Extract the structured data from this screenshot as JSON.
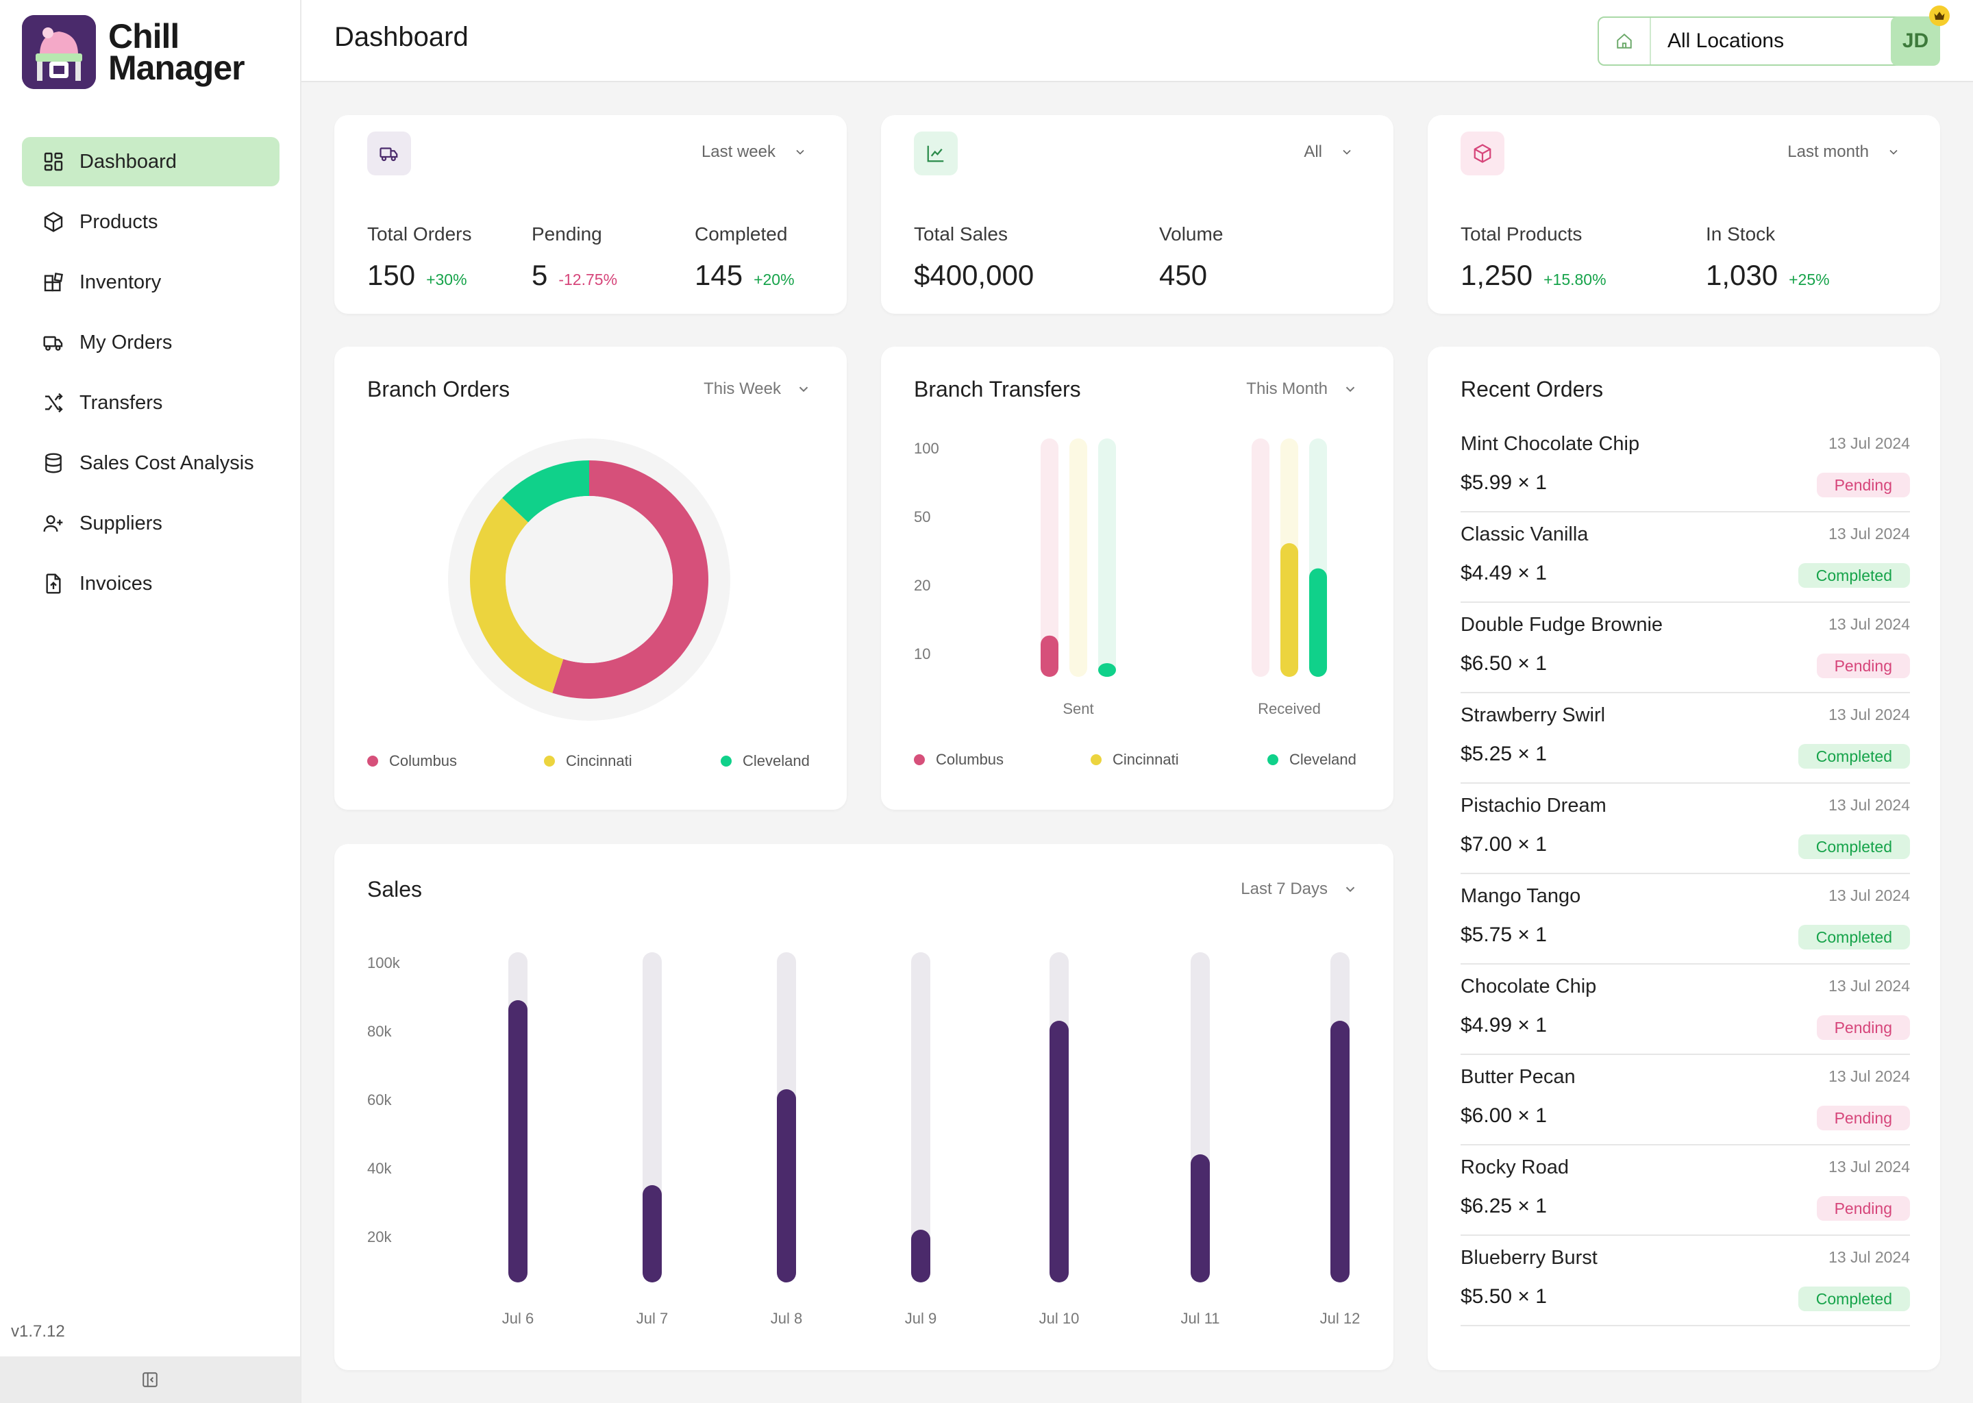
{
  "app": {
    "name_line1": "Chill",
    "name_line2": "Manager",
    "version": "v1.7.12"
  },
  "sidebar": {
    "items": [
      {
        "label": "Dashboard",
        "icon": "dashboard-icon",
        "active": true
      },
      {
        "label": "Products",
        "icon": "box-icon"
      },
      {
        "label": "Inventory",
        "icon": "inventory-icon"
      },
      {
        "label": "My Orders",
        "icon": "truck-icon"
      },
      {
        "label": "Transfers",
        "icon": "shuffle-icon"
      },
      {
        "label": "Sales Cost Analysis",
        "icon": "database-icon"
      },
      {
        "label": "Suppliers",
        "icon": "user-plus-icon"
      },
      {
        "label": "Invoices",
        "icon": "file-upload-icon"
      }
    ]
  },
  "header": {
    "title": "Dashboard",
    "location": "All Locations",
    "avatar": "JD"
  },
  "colors": {
    "accent": "#c9ecc7",
    "purple": "#4a2a6b",
    "columbus": "#d6507a",
    "cincinnati": "#ecd43e",
    "cleveland": "#10d18a"
  },
  "stats": {
    "orders": {
      "period": "Last week",
      "items": [
        {
          "label": "Total Orders",
          "value": "150",
          "delta": "+30%",
          "trend": "pos"
        },
        {
          "label": "Pending",
          "value": "5",
          "delta": "-12.75%",
          "trend": "neg"
        },
        {
          "label": "Completed",
          "value": "145",
          "delta": "+20%",
          "trend": "pos"
        }
      ]
    },
    "sales": {
      "period": "All",
      "items": [
        {
          "label": "Total Sales",
          "value": "$400,000"
        },
        {
          "label": "Volume",
          "value": "450"
        }
      ]
    },
    "products": {
      "period": "Last month",
      "items": [
        {
          "label": "Total Products",
          "value": "1,250",
          "delta": "+15.80%",
          "trend": "pos"
        },
        {
          "label": "In Stock",
          "value": "1,030",
          "delta": "+25%",
          "trend": "pos"
        }
      ]
    }
  },
  "branch_orders": {
    "title": "Branch Orders",
    "period": "This Week",
    "legend": [
      "Columbus",
      "Cincinnati",
      "Cleveland"
    ]
  },
  "branch_transfers": {
    "title": "Branch Transfers",
    "period": "This Month",
    "legend": [
      "Columbus",
      "Cincinnati",
      "Cleveland"
    ]
  },
  "sales_chart": {
    "title": "Sales",
    "period": "Last 7 Days"
  },
  "recent_orders": {
    "title": "Recent Orders",
    "items": [
      {
        "name": "Mint Chocolate Chip",
        "date": "13 Jul 2024",
        "price": "$5.99 × 1",
        "status": "Pending"
      },
      {
        "name": "Classic Vanilla",
        "date": "13 Jul 2024",
        "price": "$4.49 × 1",
        "status": "Completed"
      },
      {
        "name": "Double Fudge Brownie",
        "date": "13 Jul 2024",
        "price": "$6.50 × 1",
        "status": "Pending"
      },
      {
        "name": "Strawberry Swirl",
        "date": "13 Jul 2024",
        "price": "$5.25 × 1",
        "status": "Completed"
      },
      {
        "name": "Pistachio Dream",
        "date": "13 Jul 2024",
        "price": "$7.00 × 1",
        "status": "Completed"
      },
      {
        "name": "Mango Tango",
        "date": "13 Jul 2024",
        "price": "$5.75 × 1",
        "status": "Completed"
      },
      {
        "name": "Chocolate Chip",
        "date": "13 Jul 2024",
        "price": "$4.99 × 1",
        "status": "Pending"
      },
      {
        "name": "Butter Pecan",
        "date": "13 Jul 2024",
        "price": "$6.00 × 1",
        "status": "Pending"
      },
      {
        "name": "Rocky Road",
        "date": "13 Jul 2024",
        "price": "$6.25 × 1",
        "status": "Pending"
      },
      {
        "name": "Blueberry Burst",
        "date": "13 Jul 2024",
        "price": "$5.50 × 1",
        "status": "Completed"
      }
    ]
  },
  "chart_data": [
    {
      "type": "pie",
      "title": "Branch Orders",
      "variant": "donut",
      "categories": [
        "Columbus",
        "Cincinnati",
        "Cleveland"
      ],
      "values": [
        55,
        32,
        13
      ]
    },
    {
      "type": "bar",
      "title": "Branch Transfers",
      "categories": [
        "Sent",
        "Received"
      ],
      "yticks": [
        "100",
        "50",
        "20",
        "10"
      ],
      "series": [
        {
          "name": "Columbus",
          "values": [
            12,
            6
          ]
        },
        {
          "name": "Cincinnati",
          "values": [
            6,
            35
          ]
        },
        {
          "name": "Cleveland",
          "values": [
            9,
            25
          ]
        }
      ],
      "ylim": [
        5,
        100
      ]
    },
    {
      "type": "bar",
      "title": "Sales",
      "categories": [
        "Jul 6",
        "Jul 7",
        "Jul 8",
        "Jul 9",
        "Jul 10",
        "Jul 11",
        "Jul 12"
      ],
      "values": [
        89000,
        35000,
        63000,
        22000,
        83000,
        44000,
        83000
      ],
      "yticks": [
        "100k",
        "80k",
        "60k",
        "40k",
        "20k"
      ],
      "ylim": [
        10000,
        100000
      ]
    }
  ]
}
